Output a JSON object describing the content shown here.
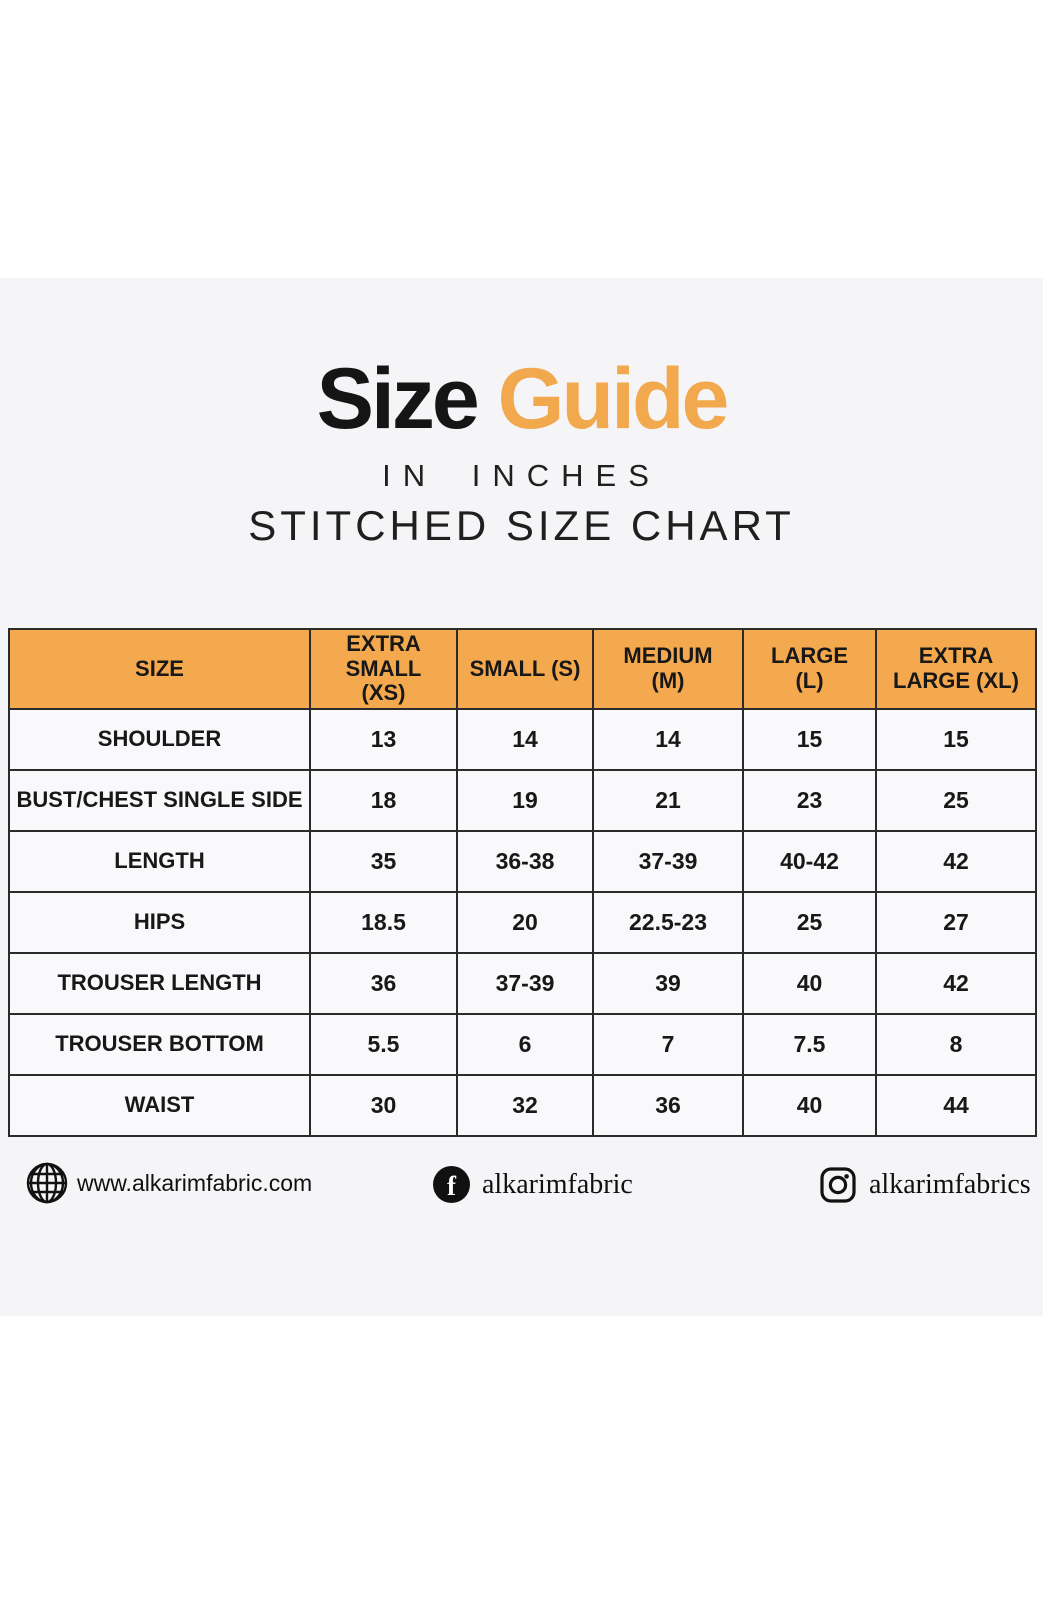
{
  "header": {
    "title_primary": "Size",
    "title_accent": "Guide",
    "subtitle": "IN INCHES",
    "chart_label": "STITCHED SIZE CHART"
  },
  "colors": {
    "accent_orange": "#F2A84D",
    "table_header_bg": "#F5A94E",
    "text_black": "#181818",
    "content_band_bg": "#F5F5F7",
    "cell_bg": "#F9F9FB",
    "table_border": "#2B2B2B"
  },
  "chart_data": {
    "type": "table",
    "title": "Size Guide in Inches — Stitched Size Chart",
    "columns": [
      "SIZE",
      "EXTRA SMALL (XS)",
      "SMALL (S)",
      "MEDIUM (M)",
      "LARGE (L)",
      "EXTRA LARGE (XL)"
    ],
    "rows": [
      {
        "label": "SHOULDER",
        "values": [
          "13",
          "14",
          "14",
          "15",
          "15"
        ]
      },
      {
        "label": "BUST/CHEST SINGLE SIDE",
        "values": [
          "18",
          "19",
          "21",
          "23",
          "25"
        ]
      },
      {
        "label": "LENGTH",
        "values": [
          "35",
          "36-38",
          "37-39",
          "40-42",
          "42"
        ]
      },
      {
        "label": "HIPS",
        "values": [
          "18.5",
          "20",
          "22.5-23",
          "25",
          "27"
        ]
      },
      {
        "label": "TROUSER LENGTH",
        "values": [
          "36",
          "37-39",
          "39",
          "40",
          "42"
        ]
      },
      {
        "label": "TROUSER BOTTOM",
        "values": [
          "5.5",
          "6",
          "7",
          "7.5",
          "8"
        ]
      },
      {
        "label": "WAIST",
        "values": [
          "30",
          "32",
          "36",
          "40",
          "44"
        ]
      }
    ]
  },
  "footer": {
    "website_label": "www.alkarimfabric.com",
    "facebook_label": "alkarimfabric",
    "instagram_label": "alkarimfabrics"
  }
}
